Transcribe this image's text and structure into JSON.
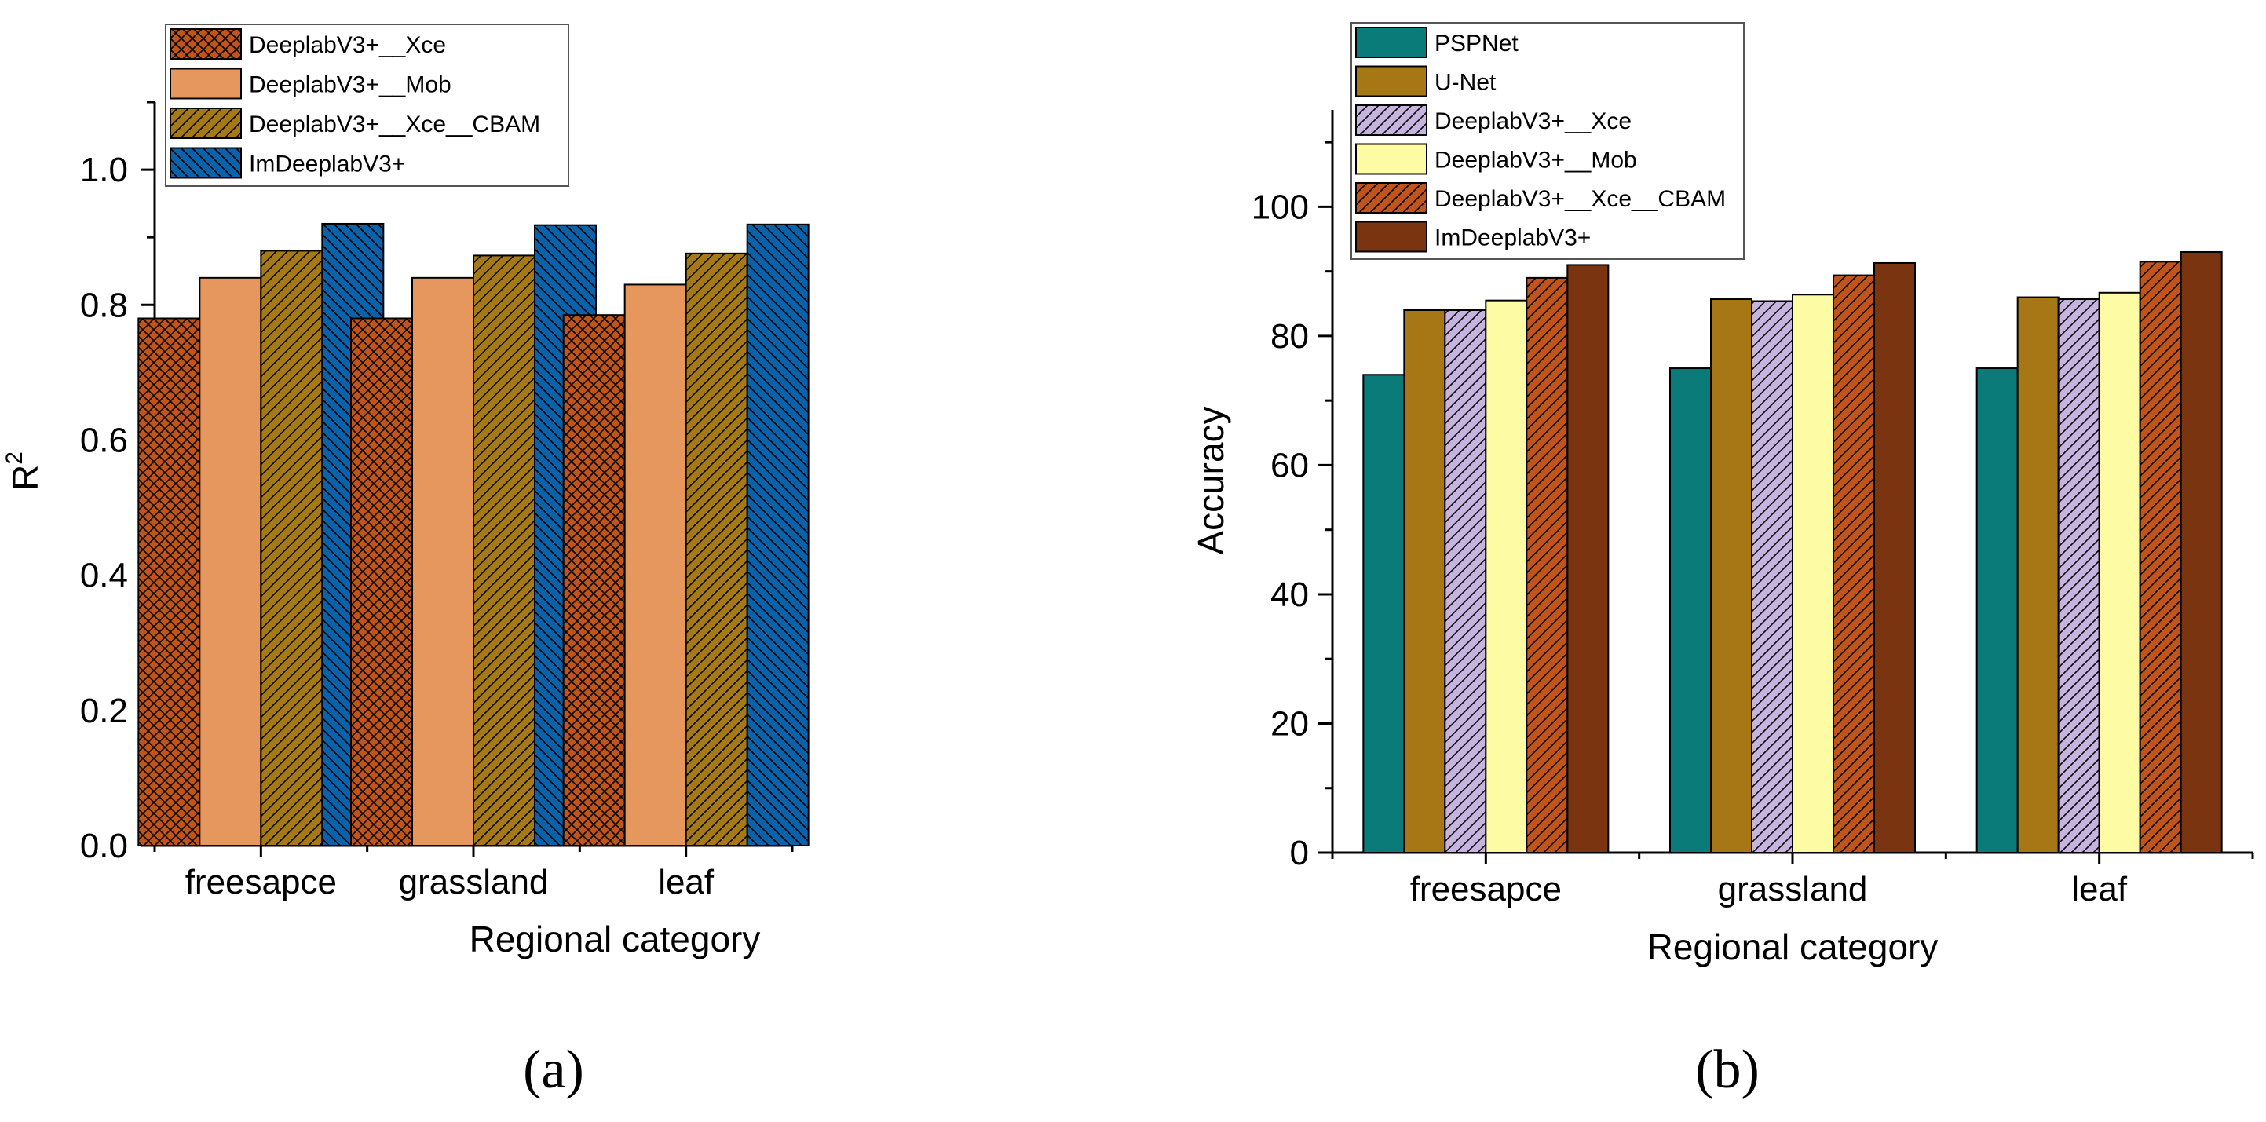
{
  "chart_data": [
    {
      "id": "a",
      "type": "bar",
      "panel_label": "(a)",
      "title": "",
      "xlabel": "Regional category",
      "ylabel": "R",
      "ylabel_sup": "2",
      "categories": [
        "freesapce",
        "grassland",
        "leaf"
      ],
      "ylim": [
        0,
        1.1
      ],
      "yticks": [
        0.0,
        0.2,
        0.4,
        0.6,
        0.8,
        1.0
      ],
      "ytick_labels": [
        "0.0",
        "0.2",
        "0.4",
        "0.6",
        "0.8",
        "1.0"
      ],
      "legend_position": "top-left",
      "grid": false,
      "series": [
        {
          "name": "DeeplabV3+__Xce",
          "color": "#c0541a",
          "pattern": "crosshatch",
          "values": [
            0.78,
            0.78,
            0.785
          ]
        },
        {
          "name": "DeeplabV3+__Mob",
          "color": "#e6975e",
          "pattern": "none",
          "values": [
            0.84,
            0.84,
            0.83
          ]
        },
        {
          "name": "DeeplabV3+__Xce__CBAM",
          "color": "#a57a16",
          "pattern": "diagonal",
          "values": [
            0.88,
            0.873,
            0.876
          ]
        },
        {
          "name": "ImDeeplabV3+",
          "color": "#0a62aa",
          "pattern": "backdiagonal",
          "values": [
            0.92,
            0.918,
            0.919
          ]
        }
      ]
    },
    {
      "id": "b",
      "type": "bar",
      "panel_label": "(b)",
      "title": "",
      "xlabel": "Regional category",
      "ylabel": "Accuracy",
      "categories": [
        "freesapce",
        "grassland",
        "leaf"
      ],
      "ylim": [
        0,
        115
      ],
      "yticks": [
        0,
        20,
        40,
        60,
        80,
        100
      ],
      "ytick_labels": [
        "0",
        "20",
        "40",
        "60",
        "80",
        "100"
      ],
      "legend_position": "top-left",
      "grid": false,
      "series": [
        {
          "name": "PSPNet",
          "color": "#0a7b78",
          "pattern": "none",
          "values": [
            74,
            75,
            75
          ]
        },
        {
          "name": "U-Net",
          "color": "#a77715",
          "pattern": "none",
          "values": [
            84,
            85.7,
            86
          ]
        },
        {
          "name": "DeeplabV3+__Xce",
          "color": "#c7b3df",
          "pattern": "diagonal",
          "values": [
            84,
            85.4,
            85.7
          ]
        },
        {
          "name": "DeeplabV3+__Mob",
          "color": "#fdfca4",
          "pattern": "none",
          "values": [
            85.5,
            86.4,
            86.7
          ]
        },
        {
          "name": "DeeplabV3+__Xce__CBAM",
          "color": "#c0541a",
          "pattern": "diagonal",
          "values": [
            89,
            89.4,
            91.5
          ]
        },
        {
          "name": "ImDeeplabV3+",
          "color": "#7a3510",
          "pattern": "none",
          "values": [
            91,
            91.3,
            93
          ]
        }
      ]
    }
  ]
}
